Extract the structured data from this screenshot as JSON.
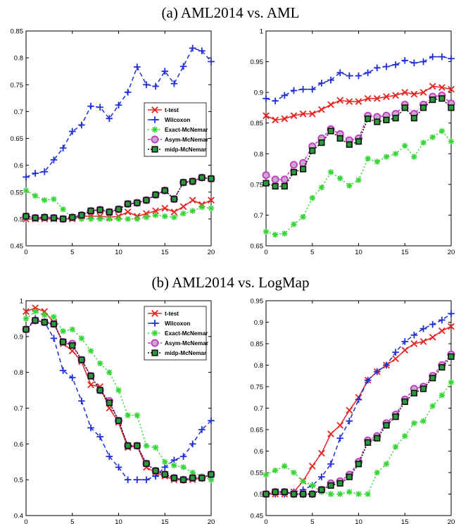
{
  "sections": [
    {
      "title": "(a) AML2014 vs. AML"
    },
    {
      "title": "(b) AML2014 vs. LogMap"
    }
  ],
  "styles": {
    "t-test": {
      "color": "#e8231f",
      "dash": "",
      "marker": "x"
    },
    "Wilcoxon": {
      "color": "#1f2fd6",
      "dash": "6,4",
      "marker": "plus"
    },
    "Exact-McNemar": {
      "color": "#33d633",
      "dash": "2,3",
      "marker": "star"
    },
    "Asym-McNemar": {
      "color": "#c437c4",
      "dash": "4,2,1,2",
      "marker": "circle",
      "fill": "#c9a8c9"
    },
    "midp-McNemar": {
      "color": "#111111",
      "dash": "2,2",
      "marker": "square",
      "fill": "#2a9a3a"
    }
  },
  "chart_data": [
    {
      "type": "line",
      "x": [
        0,
        1,
        2,
        3,
        4,
        5,
        6,
        7,
        8,
        9,
        10,
        11,
        12,
        13,
        14,
        15,
        16,
        17,
        18,
        19,
        20
      ],
      "xlim": [
        0,
        20
      ],
      "xticks": [
        0,
        5,
        10,
        15,
        20
      ],
      "ylim": [
        0.45,
        0.85
      ],
      "yticks": [
        "0.45",
        "0.5",
        "0.55",
        "0.6",
        "0.65",
        "0.7",
        "0.75",
        "0.8",
        "0.85"
      ],
      "legend": "right",
      "series": [
        {
          "name": "t-test",
          "values": [
            0.5,
            0.5,
            0.5,
            0.5,
            0.5,
            0.5,
            0.505,
            0.505,
            0.505,
            0.503,
            0.505,
            0.513,
            0.505,
            0.51,
            0.515,
            0.52,
            0.513,
            0.523,
            0.535,
            0.527,
            0.535
          ]
        },
        {
          "name": "Wilcoxon",
          "values": [
            0.578,
            0.585,
            0.588,
            0.61,
            0.632,
            0.663,
            0.675,
            0.71,
            0.708,
            0.687,
            0.712,
            0.736,
            0.783,
            0.75,
            0.747,
            0.775,
            0.752,
            0.784,
            0.818,
            0.813,
            0.793
          ]
        },
        {
          "name": "Exact-McNemar",
          "values": [
            0.553,
            0.543,
            0.535,
            0.537,
            0.518,
            0.502,
            0.5,
            0.5,
            0.5,
            0.5,
            0.5,
            0.5,
            0.5,
            0.503,
            0.507,
            0.505,
            0.503,
            0.51,
            0.515,
            0.522,
            0.52
          ]
        },
        {
          "name": "Asym-McNemar",
          "values": [
            0.505,
            0.502,
            0.503,
            0.502,
            0.5,
            0.503,
            0.507,
            0.515,
            0.517,
            0.513,
            0.518,
            0.528,
            0.53,
            0.535,
            0.545,
            0.553,
            0.537,
            0.568,
            0.57,
            0.577,
            0.575
          ]
        },
        {
          "name": "midp-McNemar",
          "values": [
            0.505,
            0.502,
            0.503,
            0.502,
            0.5,
            0.503,
            0.507,
            0.515,
            0.517,
            0.513,
            0.518,
            0.528,
            0.53,
            0.535,
            0.545,
            0.553,
            0.537,
            0.568,
            0.57,
            0.577,
            0.575
          ]
        }
      ]
    },
    {
      "type": "line",
      "x": [
        0,
        1,
        2,
        3,
        4,
        5,
        6,
        7,
        8,
        9,
        10,
        11,
        12,
        13,
        14,
        15,
        16,
        17,
        18,
        19,
        20
      ],
      "xlim": [
        0,
        20
      ],
      "xticks": [
        0,
        5,
        10,
        15,
        20
      ],
      "ylim": [
        0.65,
        1.0
      ],
      "yticks": [
        "0.65",
        "0.7",
        "0.75",
        "0.8",
        "0.85",
        "0.9",
        "0.95",
        "1"
      ],
      "legend": "none",
      "series": [
        {
          "name": "t-test",
          "values": [
            0.862,
            0.855,
            0.857,
            0.862,
            0.865,
            0.865,
            0.872,
            0.88,
            0.887,
            0.885,
            0.885,
            0.89,
            0.89,
            0.893,
            0.895,
            0.9,
            0.897,
            0.9,
            0.91,
            0.908,
            0.905
          ]
        },
        {
          "name": "Wilcoxon",
          "values": [
            0.89,
            0.886,
            0.895,
            0.903,
            0.905,
            0.905,
            0.915,
            0.92,
            0.932,
            0.927,
            0.927,
            0.932,
            0.94,
            0.942,
            0.945,
            0.952,
            0.948,
            0.95,
            0.958,
            0.958,
            0.955
          ]
        },
        {
          "name": "Exact-McNemar",
          "values": [
            0.673,
            0.668,
            0.67,
            0.685,
            0.697,
            0.728,
            0.745,
            0.77,
            0.76,
            0.748,
            0.757,
            0.792,
            0.787,
            0.795,
            0.8,
            0.813,
            0.795,
            0.818,
            0.827,
            0.837,
            0.82
          ]
        },
        {
          "name": "Asym-McNemar",
          "values": [
            0.765,
            0.758,
            0.758,
            0.782,
            0.785,
            0.812,
            0.825,
            0.84,
            0.832,
            0.822,
            0.825,
            0.862,
            0.86,
            0.862,
            0.865,
            0.88,
            0.865,
            0.88,
            0.893,
            0.895,
            0.882
          ]
        },
        {
          "name": "midp-McNemar",
          "values": [
            0.752,
            0.747,
            0.747,
            0.77,
            0.775,
            0.805,
            0.818,
            0.837,
            0.825,
            0.815,
            0.82,
            0.857,
            0.852,
            0.855,
            0.858,
            0.875,
            0.858,
            0.875,
            0.888,
            0.89,
            0.875
          ]
        }
      ]
    },
    {
      "type": "line",
      "x": [
        0,
        1,
        2,
        3,
        4,
        5,
        6,
        7,
        8,
        9,
        10,
        11,
        12,
        13,
        14,
        15,
        16,
        17,
        18,
        19,
        20
      ],
      "xlim": [
        0,
        20
      ],
      "xticks": [
        0,
        5,
        10,
        15,
        20
      ],
      "ylim": [
        0.4,
        1.0
      ],
      "yticks": [
        "0.4",
        "0.5",
        "0.6",
        "0.7",
        "0.8",
        "0.9",
        "1"
      ],
      "legend": "top-right",
      "series": [
        {
          "name": "t-test",
          "values": [
            0.97,
            0.98,
            0.97,
            0.94,
            0.88,
            0.86,
            0.83,
            0.765,
            0.76,
            0.7,
            0.66,
            0.59,
            0.595,
            0.535,
            0.52,
            0.51,
            0.5,
            0.5,
            0.5,
            0.505,
            0.515
          ]
        },
        {
          "name": "Wilcoxon",
          "values": [
            0.92,
            0.95,
            0.94,
            0.895,
            0.805,
            0.785,
            0.72,
            0.645,
            0.62,
            0.565,
            0.535,
            0.5,
            0.5,
            0.5,
            0.51,
            0.535,
            0.555,
            0.565,
            0.6,
            0.64,
            0.665
          ]
        },
        {
          "name": "Exact-McNemar",
          "values": [
            0.95,
            0.97,
            0.96,
            0.955,
            0.915,
            0.92,
            0.895,
            0.86,
            0.825,
            0.8,
            0.75,
            0.68,
            0.68,
            0.595,
            0.59,
            0.55,
            0.54,
            0.535,
            0.52,
            0.51,
            0.5
          ]
        },
        {
          "name": "Asym-McNemar",
          "values": [
            0.92,
            0.945,
            0.94,
            0.935,
            0.885,
            0.88,
            0.835,
            0.79,
            0.75,
            0.72,
            0.665,
            0.595,
            0.595,
            0.545,
            0.525,
            0.515,
            0.505,
            0.5,
            0.505,
            0.505,
            0.515
          ]
        },
        {
          "name": "midp-McNemar",
          "values": [
            0.92,
            0.945,
            0.94,
            0.935,
            0.885,
            0.875,
            0.835,
            0.79,
            0.75,
            0.715,
            0.665,
            0.595,
            0.595,
            0.545,
            0.525,
            0.515,
            0.505,
            0.5,
            0.505,
            0.505,
            0.515
          ]
        }
      ]
    },
    {
      "type": "line",
      "x": [
        0,
        1,
        2,
        3,
        4,
        5,
        6,
        7,
        8,
        9,
        10,
        11,
        12,
        13,
        14,
        15,
        16,
        17,
        18,
        19,
        20
      ],
      "xlim": [
        0,
        20
      ],
      "xticks": [
        0,
        5,
        10,
        15,
        20
      ],
      "ylim": [
        0.45,
        0.95
      ],
      "yticks": [
        "0.45",
        "0.5",
        "0.55",
        "0.6",
        "0.65",
        "0.7",
        "0.75",
        "0.8",
        "0.85",
        "0.9",
        "0.95"
      ],
      "legend": "none",
      "series": [
        {
          "name": "t-test",
          "values": [
            0.5,
            0.5,
            0.5,
            0.505,
            0.53,
            0.565,
            0.595,
            0.64,
            0.66,
            0.695,
            0.725,
            0.765,
            0.785,
            0.8,
            0.815,
            0.835,
            0.85,
            0.855,
            0.865,
            0.88,
            0.89
          ]
        },
        {
          "name": "Wilcoxon",
          "values": [
            0.5,
            0.5,
            0.5,
            0.505,
            0.51,
            0.52,
            0.54,
            0.57,
            0.63,
            0.67,
            0.72,
            0.765,
            0.785,
            0.8,
            0.83,
            0.855,
            0.87,
            0.885,
            0.895,
            0.905,
            0.92
          ]
        },
        {
          "name": "Exact-McNemar",
          "values": [
            0.545,
            0.555,
            0.565,
            0.55,
            0.53,
            0.52,
            0.505,
            0.5,
            0.5,
            0.505,
            0.5,
            0.5,
            0.55,
            0.57,
            0.61,
            0.635,
            0.665,
            0.67,
            0.705,
            0.73,
            0.76
          ]
        },
        {
          "name": "Asym-McNemar",
          "values": [
            0.5,
            0.505,
            0.505,
            0.5,
            0.5,
            0.5,
            0.51,
            0.525,
            0.53,
            0.545,
            0.575,
            0.625,
            0.635,
            0.665,
            0.685,
            0.72,
            0.745,
            0.75,
            0.775,
            0.8,
            0.825
          ]
        },
        {
          "name": "midp-McNemar",
          "values": [
            0.5,
            0.505,
            0.505,
            0.5,
            0.5,
            0.5,
            0.51,
            0.52,
            0.525,
            0.54,
            0.57,
            0.62,
            0.63,
            0.66,
            0.68,
            0.715,
            0.735,
            0.745,
            0.77,
            0.795,
            0.82
          ]
        }
      ]
    }
  ]
}
